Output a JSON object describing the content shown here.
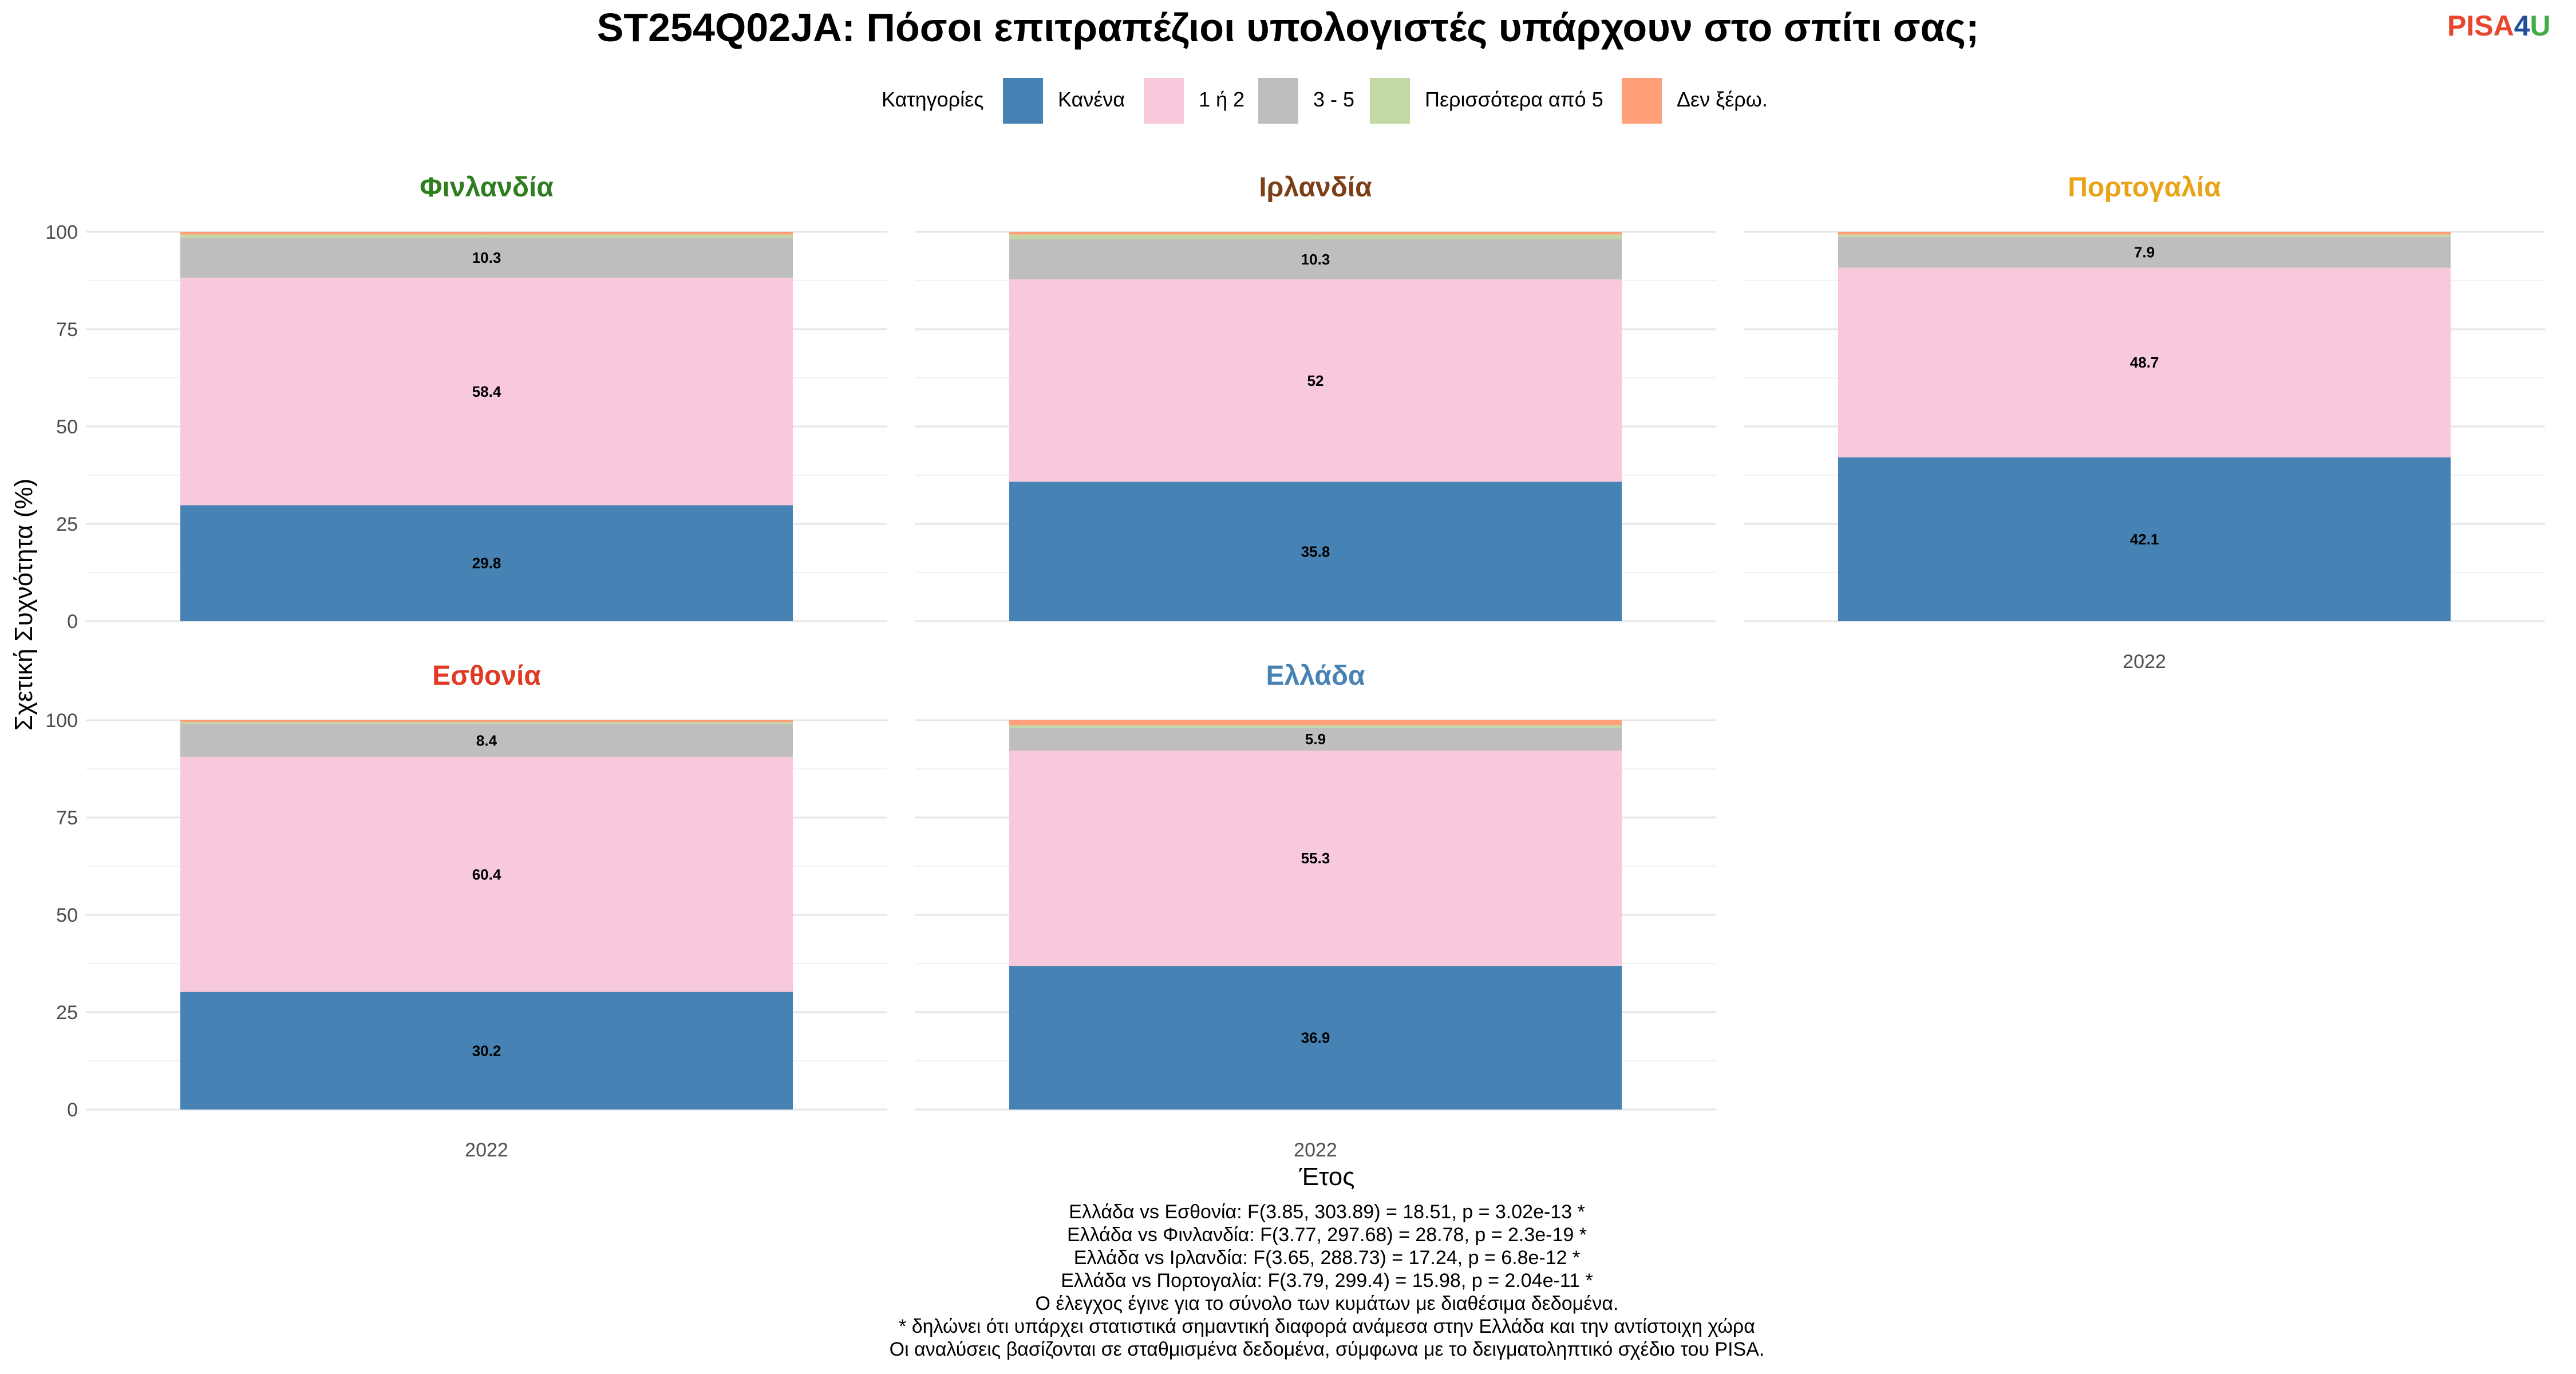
{
  "logo": {
    "part1": "PISA",
    "part2": "4",
    "part3": "U",
    "color1": "#e8452c",
    "color2": "#1f4e9c",
    "color3": "#3fae49"
  },
  "chart_data": {
    "type": "bar",
    "stacked": true,
    "title": "ST254Q02JA: Πόσοι επιτραπέζιοι υπολογιστές υπάρχουν στο σπίτι σας;",
    "legend_title": "Κατηγορίες",
    "legend_position": "top",
    "categories": [
      "Κανένα",
      "1 ή 2",
      "3 - 5",
      "Περισσότερα από 5",
      "Δεν ξέρω."
    ],
    "colors": [
      "#4682b4",
      "#f8c8dc",
      "#bebebe",
      "#c2d9a6",
      "#ffa07a"
    ],
    "xlabel": "Έτος",
    "ylabel": "Σχετική Συχνότητα (%)",
    "ylim": [
      0,
      100
    ],
    "yticks": [
      "0",
      "25",
      "50",
      "75",
      "100"
    ],
    "grid": true,
    "panels": [
      {
        "name": "Φινλανδία",
        "color": "#2e7d1e",
        "x": "2022",
        "values": [
          29.8,
          58.4,
          10.3,
          0.8,
          0.7
        ],
        "labels": [
          "29.8",
          "58.4",
          "10.3",
          "",
          ""
        ]
      },
      {
        "name": "Ιρλανδία",
        "color": "#7b4019",
        "x": "2022",
        "values": [
          35.8,
          52.0,
          10.3,
          1.2,
          0.7
        ],
        "labels": [
          "35.8",
          "52",
          "10.3",
          "",
          ""
        ]
      },
      {
        "name": "Πορτογαλία",
        "color": "#e8a317",
        "x": "2022",
        "values": [
          42.1,
          48.7,
          7.9,
          0.6,
          0.7
        ],
        "labels": [
          "42.1",
          "48.7",
          "7.9",
          "",
          ""
        ]
      },
      {
        "name": "Εσθονία",
        "color": "#e03a25",
        "x": "2022",
        "values": [
          30.2,
          60.4,
          8.4,
          0.5,
          0.5
        ],
        "labels": [
          "30.2",
          "60.4",
          "8.4",
          "",
          ""
        ]
      },
      {
        "name": "Ελλάδα",
        "color": "#4682b4",
        "x": "2022",
        "values": [
          36.9,
          55.3,
          5.9,
          0.6,
          1.3
        ],
        "labels": [
          "36.9",
          "55.3",
          "5.9",
          "",
          ""
        ]
      }
    ],
    "caption": [
      "Ελλάδα vs Εσθονία: F(3.85, 303.89) = 18.51, p = 3.02e-13 *",
      "Ελλάδα vs Φινλανδία: F(3.77, 297.68) = 28.78, p = 2.3e-19 *",
      "Ελλάδα vs Ιρλανδία: F(3.65, 288.73) = 17.24, p = 6.8e-12 *",
      "Ελλάδα vs Πορτογαλία: F(3.79, 299.4) = 15.98, p = 2.04e-11 *",
      "Ο έλεγχος έγινε για το σύνολο των κυμάτων με διαθέσιμα δεδομένα.",
      "* δηλώνει ότι υπάρχει στατιστικά σημαντική διαφορά ανάμεσα στην Ελλάδα και την αντίστοιχη χώρα",
      "Οι αναλύσεις βασίζονται σε σταθμισμένα δεδομένα, σύμφωνα με το δειγματοληπτικό σχέδιο του PISA."
    ]
  }
}
